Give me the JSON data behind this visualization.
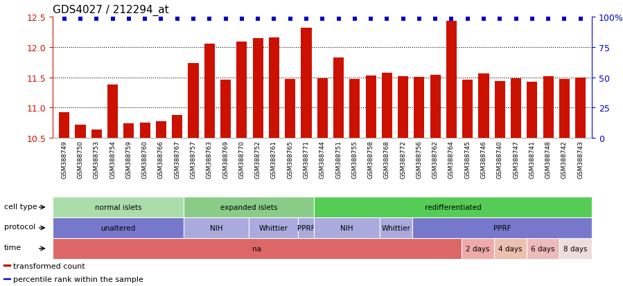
{
  "title": "GDS4027 / 212294_at",
  "samples": [
    "GSM388749",
    "GSM388750",
    "GSM388753",
    "GSM388754",
    "GSM388759",
    "GSM388760",
    "GSM388766",
    "GSM388767",
    "GSM388757",
    "GSM388763",
    "GSM388769",
    "GSM388770",
    "GSM388752",
    "GSM388761",
    "GSM388765",
    "GSM388771",
    "GSM388744",
    "GSM388751",
    "GSM388755",
    "GSM388758",
    "GSM388768",
    "GSM388772",
    "GSM388756",
    "GSM388762",
    "GSM388764",
    "GSM388745",
    "GSM388746",
    "GSM388740",
    "GSM388747",
    "GSM388741",
    "GSM388748",
    "GSM388742",
    "GSM388743"
  ],
  "bar_values": [
    10.93,
    10.72,
    10.64,
    11.38,
    10.74,
    10.76,
    10.78,
    10.88,
    11.73,
    12.05,
    11.46,
    12.09,
    12.15,
    12.16,
    11.47,
    12.32,
    11.48,
    11.83,
    11.47,
    11.53,
    11.58,
    11.52,
    11.51,
    11.54,
    12.43,
    11.46,
    11.56,
    11.44,
    11.48,
    11.43,
    11.52,
    11.47,
    11.5
  ],
  "ymin": 10.5,
  "ymax": 12.5,
  "yticks": [
    10.5,
    11.0,
    11.5,
    12.0,
    12.5
  ],
  "right_yticks": [
    0,
    25,
    50,
    75,
    100
  ],
  "bar_color": "#cc1100",
  "percentile_color": "#0000cc",
  "bg_color": "#ffffff",
  "xtick_bg": "#cccccc",
  "cell_type_groups": [
    {
      "label": "normal islets",
      "start": 0,
      "end": 7,
      "color": "#aaddaa"
    },
    {
      "label": "expanded islets",
      "start": 8,
      "end": 15,
      "color": "#88cc88"
    },
    {
      "label": "redifferentiated",
      "start": 16,
      "end": 32,
      "color": "#55cc55"
    }
  ],
  "protocol_groups": [
    {
      "label": "unaltered",
      "start": 0,
      "end": 7,
      "color": "#7777cc"
    },
    {
      "label": "NIH",
      "start": 8,
      "end": 11,
      "color": "#aaaadd"
    },
    {
      "label": "Whittier",
      "start": 12,
      "end": 14,
      "color": "#aaaadd"
    },
    {
      "label": "PPRF",
      "start": 15,
      "end": 15,
      "color": "#aaaadd"
    },
    {
      "label": "NIH",
      "start": 16,
      "end": 19,
      "color": "#aaaadd"
    },
    {
      "label": "Whittier",
      "start": 20,
      "end": 21,
      "color": "#aaaadd"
    },
    {
      "label": "PPRF",
      "start": 22,
      "end": 32,
      "color": "#7777cc"
    }
  ],
  "time_groups": [
    {
      "label": "na",
      "start": 0,
      "end": 24,
      "color": "#dd6666"
    },
    {
      "label": "2 days",
      "start": 25,
      "end": 26,
      "color": "#eeaaaa"
    },
    {
      "label": "4 days",
      "start": 27,
      "end": 28,
      "color": "#eec0b0"
    },
    {
      "label": "6 days",
      "start": 29,
      "end": 30,
      "color": "#eebbbb"
    },
    {
      "label": "8 days",
      "start": 31,
      "end": 32,
      "color": "#eedddd"
    }
  ],
  "legend_items": [
    {
      "label": "transformed count",
      "color": "#cc1100"
    },
    {
      "label": "percentile rank within the sample",
      "color": "#0000cc"
    }
  ]
}
